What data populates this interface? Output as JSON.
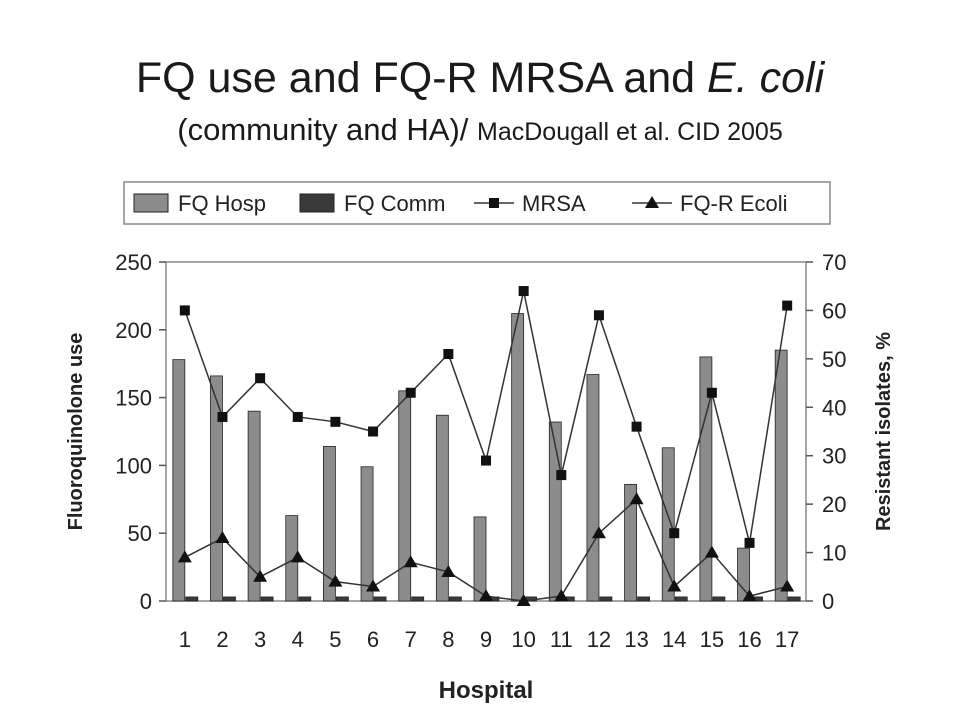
{
  "title": {
    "line1_prefix": "FQ use and FQ-R MRSA and ",
    "line1_italic": "E. coli",
    "line2_main": "(community and HA)/ ",
    "line2_small": "MacDougall et al. CID 2005"
  },
  "colors": {
    "fq_hosp": "#8c8c8c",
    "fq_comm": "#3a3a3a",
    "lines": "#333333",
    "axes": "#555555",
    "grid_box": "#888888"
  },
  "chart_data": {
    "type": "bar",
    "categories": [
      "1",
      "2",
      "3",
      "4",
      "5",
      "6",
      "7",
      "8",
      "9",
      "10",
      "11",
      "12",
      "13",
      "14",
      "15",
      "16",
      "17"
    ],
    "xlabel": "Hospital",
    "ylabel": "Fluoroquinolone use",
    "y2label": "Resistant isolates, %",
    "ylim": [
      0,
      250
    ],
    "yticks": [
      "0",
      "50",
      "100",
      "150",
      "200",
      "250"
    ],
    "y2lim": [
      0,
      70
    ],
    "y2ticks": [
      "0",
      "10",
      "20",
      "30",
      "40",
      "50",
      "60",
      "70"
    ],
    "legend_position": "top",
    "grid": false,
    "series": [
      {
        "name": "FQ Hosp",
        "kind": "bar",
        "axis": "left",
        "values": [
          178,
          166,
          140,
          63,
          114,
          99,
          155,
          137,
          62,
          212,
          132,
          167,
          86,
          113,
          180,
          39,
          185
        ]
      },
      {
        "name": "FQ Comm",
        "kind": "bar",
        "axis": "left",
        "values": [
          3,
          3,
          3,
          3,
          3,
          3,
          3,
          3,
          3,
          3,
          3,
          3,
          3,
          3,
          3,
          3,
          3
        ]
      },
      {
        "name": "MRSA",
        "kind": "line",
        "marker": "square",
        "axis": "right",
        "values": [
          60,
          38,
          46,
          38,
          37,
          35,
          43,
          51,
          29,
          64,
          26,
          59,
          36,
          14,
          43,
          12,
          61
        ]
      },
      {
        "name": "FQ-R Ecoli",
        "kind": "line",
        "marker": "triangle",
        "axis": "right",
        "values": [
          9,
          13,
          5,
          9,
          4,
          3,
          8,
          6,
          1,
          0,
          1,
          14,
          21,
          3,
          10,
          1,
          3
        ]
      }
    ]
  }
}
